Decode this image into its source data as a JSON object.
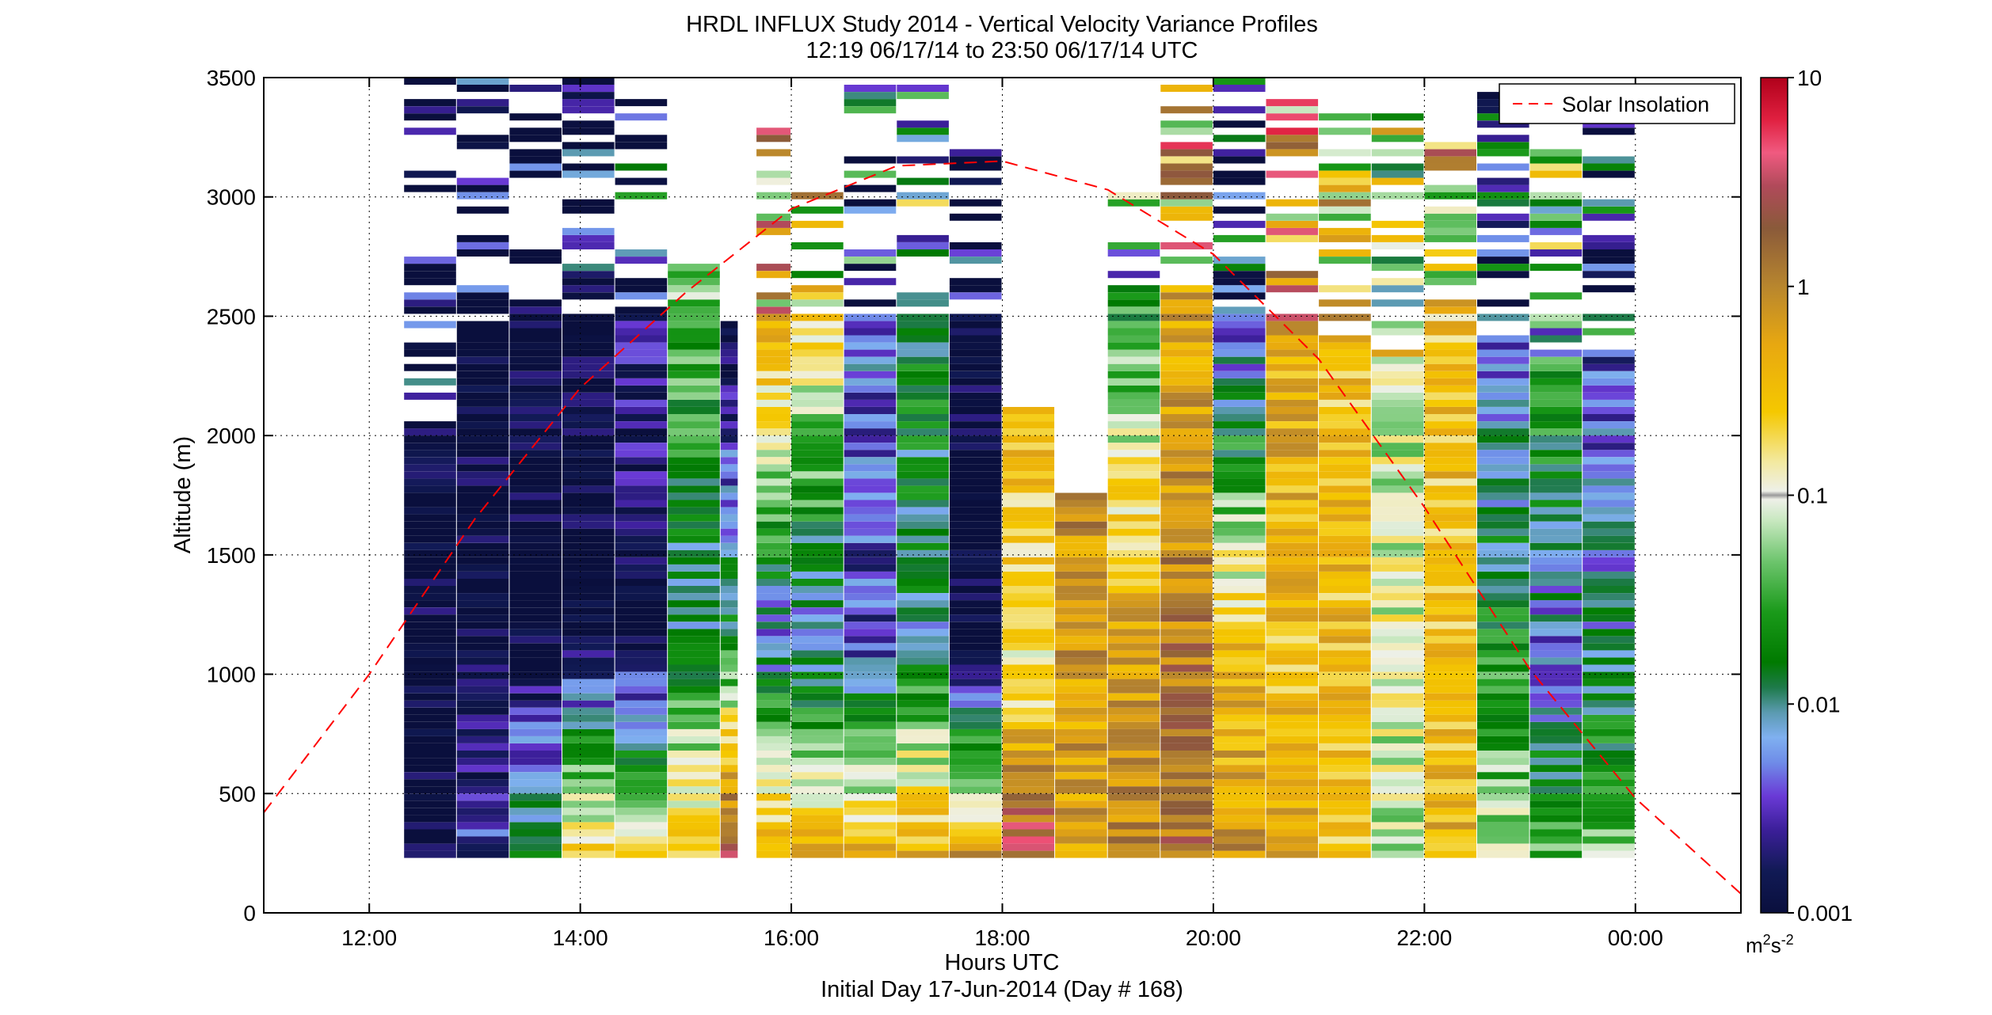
{
  "title": {
    "line1": "HRDL INFLUX Study 2014 - Vertical Velocity Variance Profiles",
    "line2": "12:19 06/17/14 to 23:50 06/17/14  UTC"
  },
  "xaxis": {
    "label": "Hours UTC",
    "sublabel": "Initial Day 17-Jun-2014 (Day # 168)"
  },
  "yaxis": {
    "label": "Altitude (m)"
  },
  "legend": {
    "entry": "Solar Insolation",
    "placement": "top-right",
    "line_color": "#ff0000"
  },
  "colorbar": {
    "unit_base": "m",
    "unit_sup": "2",
    "unit_base2": "s",
    "unit_sup2": "-2",
    "tick_labels": [
      "0.001",
      "0.01",
      "0.1",
      "1",
      "10"
    ],
    "scale": "log",
    "range": [
      0.001,
      10
    ]
  },
  "chart_data": {
    "type": "heatmap",
    "title": "HRDL INFLUX Study 2014 - Vertical Velocity Variance Profiles",
    "subtitle": "12:19 06/17/14 to 23:50 06/17/14  UTC",
    "xlabel": "Hours UTC",
    "ylabel": "Altitude (m)",
    "xlim_hours": [
      11.0,
      25.0
    ],
    "x_tick_hours": [
      12,
      14,
      16,
      18,
      20,
      22,
      24
    ],
    "x_tick_labels": [
      "12:00",
      "14:00",
      "16:00",
      "18:00",
      "20:00",
      "22:00",
      "00:00"
    ],
    "ylim": [
      0,
      3500
    ],
    "y_ticks": [
      0,
      500,
      1000,
      1500,
      2000,
      2500,
      3000,
      3500
    ],
    "y_tick_labels": [
      "0",
      "500",
      "1000",
      "1500",
      "2000",
      "2500",
      "3000",
      "3500"
    ],
    "grid": true,
    "colorbar_label": "m2s-2",
    "color_scale": "log",
    "color_range": [
      0.001,
      10
    ],
    "min_altitude_m": 230,
    "profile_start_hours": [
      12.33,
      12.83,
      13.33,
      13.83,
      14.33,
      14.83,
      15.33,
      15.67,
      16.0,
      16.5,
      17.0,
      17.5,
      18.0,
      18.5,
      19.0,
      19.5,
      20.0,
      20.5,
      21.0,
      21.5,
      22.0,
      22.5,
      23.0,
      23.5
    ],
    "profile_end_hours": [
      12.83,
      13.33,
      13.83,
      14.33,
      14.83,
      15.33,
      15.5,
      16.0,
      16.5,
      17.0,
      17.5,
      18.0,
      18.5,
      19.0,
      19.5,
      20.0,
      20.5,
      21.0,
      21.5,
      22.0,
      22.5,
      23.0,
      23.5,
      24.0
    ],
    "profile_variance_top_m2s2": [
      0.001,
      0.001,
      0.001,
      0.001,
      0.003,
      0.05,
      0.001,
      0.5,
      0.2,
      0.005,
      0.02,
      0.001,
      0.3,
      0.8,
      0.02,
      0.5,
      0.003,
      0.5,
      0.3,
      0.08,
      0.3,
      0.005,
      0.03,
      0.003
    ],
    "profile_variance_mid_m2s2": [
      0.001,
      0.001,
      0.001,
      0.001,
      0.001,
      0.01,
      0.02,
      0.005,
      0.006,
      0.003,
      0.01,
      0.001,
      0.15,
      0.6,
      0.6,
      1.0,
      0.3,
      0.3,
      0.35,
      0.1,
      0.3,
      0.02,
      0.005,
      0.01
    ],
    "profile_variance_low_m2s2": [
      0.001,
      0.003,
      0.02,
      0.3,
      0.3,
      0.3,
      3.0,
      0.5,
      0.4,
      0.4,
      0.5,
      0.6,
      3.0,
      0.6,
      0.8,
      1.5,
      0.7,
      0.5,
      0.3,
      0.08,
      0.4,
      0.08,
      0.03,
      0.05
    ],
    "solar_insolation": {
      "name": "Solar Insolation",
      "x_hours": [
        11.0,
        12.0,
        13.0,
        14.0,
        15.0,
        16.0,
        17.0,
        18.0,
        19.0,
        20.0,
        21.0,
        22.0,
        23.0,
        24.0,
        25.0
      ],
      "y_altitude_equiv": [
        420,
        1000,
        1650,
        2200,
        2600,
        2950,
        3130,
        3150,
        3030,
        2760,
        2320,
        1700,
        1020,
        480,
        80
      ]
    }
  }
}
